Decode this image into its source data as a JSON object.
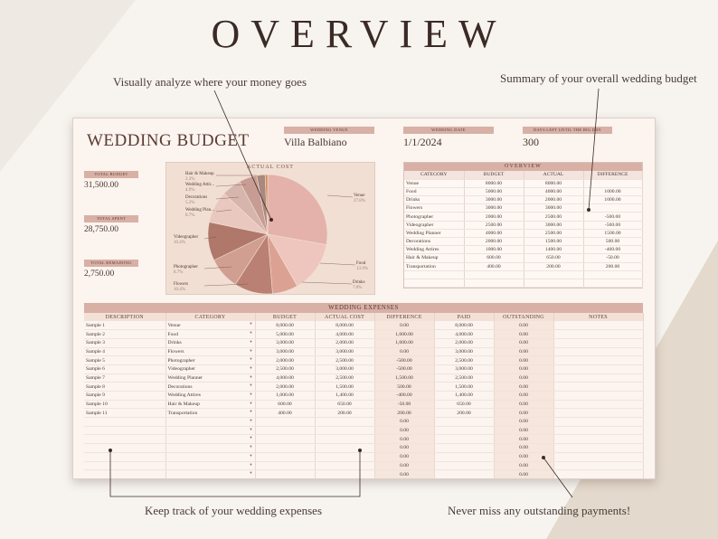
{
  "headline": "OVERVIEW",
  "callouts": {
    "analyze": "Visually analyze where your money goes",
    "summary": "Summary of your overall wedding budget",
    "track": "Keep track of your wedding expenses",
    "never_miss": "Never miss any outstanding payments!"
  },
  "sheet": {
    "title": "WEDDING BUDGET",
    "venue": {
      "label": "WEDDING VENUE",
      "value": "Villa Balbiano"
    },
    "date": {
      "label": "WEDDING DATE",
      "value": "1/1/2024"
    },
    "days_left": {
      "label": "DAYS LEFT UNTIL THE BIG DAY",
      "value": "300"
    },
    "total_budget": {
      "label": "TOTAL BUDGET",
      "value": "31,500.00"
    },
    "total_spent": {
      "label": "TOTAL SPENT",
      "value": "28,750.00"
    },
    "total_remaining": {
      "label": "TOTAL REMAINING",
      "value": "2,750.00"
    },
    "pie_title": "ACTUAL COST",
    "overview": {
      "title": "OVERVIEW",
      "headers": [
        "CATEGORY",
        "BUDGET",
        "ACTUAL",
        "DIFFERENCE"
      ],
      "rows": [
        [
          "Venue",
          "8000.00",
          "8000.00",
          ""
        ],
        [
          "Food",
          "5000.00",
          "4000.00",
          "1000.00"
        ],
        [
          "Drinks",
          "3000.00",
          "2000.00",
          "1000.00"
        ],
        [
          "Flowers",
          "3000.00",
          "3000.00",
          ""
        ],
        [
          "Photographer",
          "2000.00",
          "2500.00",
          "-500.00"
        ],
        [
          "Videographer",
          "2500.00",
          "3000.00",
          "-500.00"
        ],
        [
          "Wedding Planner",
          "4000.00",
          "2500.00",
          "1500.00"
        ],
        [
          "Decorations",
          "2000.00",
          "1500.00",
          "500.00"
        ],
        [
          "Wedding Attires",
          "1000.00",
          "1400.00",
          "-400.00"
        ],
        [
          "Hair & Makeup",
          "600.00",
          "650.00",
          "-50.00"
        ],
        [
          "Transportation",
          "400.00",
          "200.00",
          "200.00"
        ],
        [
          "",
          "",
          "",
          ""
        ],
        [
          "",
          "",
          "",
          ""
        ]
      ]
    },
    "expenses": {
      "title": "WEDDING EXPENSES",
      "headers": [
        "DESCRIPTION",
        "CATEGORY",
        "BUDGET",
        "ACTUAL COST",
        "DIFFERENCE",
        "PAID",
        "OUTSTANDING",
        "NOTES"
      ],
      "rows": [
        [
          "Sample 1",
          "Venue",
          "8,000.00",
          "8,000.00",
          "0.00",
          "8,000.00",
          "0.00",
          ""
        ],
        [
          "Sample 2",
          "Food",
          "5,000.00",
          "4,000.00",
          "1,000.00",
          "4,000.00",
          "0.00",
          ""
        ],
        [
          "Sample 3",
          "Drinks",
          "3,000.00",
          "2,000.00",
          "1,000.00",
          "2,000.00",
          "0.00",
          ""
        ],
        [
          "Sample 4",
          "Flowers",
          "3,000.00",
          "3,000.00",
          "0.00",
          "3,000.00",
          "0.00",
          ""
        ],
        [
          "Sample 5",
          "Photographer",
          "2,000.00",
          "2,500.00",
          "-500.00",
          "2,500.00",
          "0.00",
          ""
        ],
        [
          "Sample 6",
          "Videographer",
          "2,500.00",
          "3,000.00",
          "-500.00",
          "3,000.00",
          "0.00",
          ""
        ],
        [
          "Sample 7",
          "Wedding Planner",
          "4,000.00",
          "2,500.00",
          "1,500.00",
          "2,500.00",
          "0.00",
          ""
        ],
        [
          "Sample 8",
          "Decorations",
          "2,000.00",
          "1,500.00",
          "500.00",
          "1,500.00",
          "0.00",
          ""
        ],
        [
          "Sample 9",
          "Wedding Attires",
          "1,000.00",
          "1,400.00",
          "-400.00",
          "1,400.00",
          "0.00",
          ""
        ],
        [
          "Sample 10",
          "Hair & Makeup",
          "600.00",
          "650.00",
          "-50.00",
          "650.00",
          "0.00",
          ""
        ],
        [
          "Sample 11",
          "Transportation",
          "400.00",
          "200.00",
          "200.00",
          "200.00",
          "0.00",
          ""
        ],
        [
          "",
          "",
          "",
          "",
          "0.00",
          "",
          "0.00",
          ""
        ],
        [
          "",
          "",
          "",
          "",
          "0.00",
          "",
          "0.00",
          ""
        ],
        [
          "",
          "",
          "",
          "",
          "0.00",
          "",
          "0.00",
          ""
        ],
        [
          "",
          "",
          "",
          "",
          "0.00",
          "",
          "0.00",
          ""
        ],
        [
          "",
          "",
          "",
          "",
          "0.00",
          "",
          "0.00",
          ""
        ],
        [
          "",
          "",
          "",
          "",
          "0.00",
          "",
          "0.00",
          ""
        ],
        [
          "",
          "",
          "",
          "",
          "0.00",
          "",
          "0.00",
          ""
        ]
      ]
    }
  },
  "chart_data": {
    "type": "pie",
    "title": "ACTUAL COST",
    "slices": [
      {
        "label": "Venue",
        "pct": "27.8%",
        "value": 8000,
        "color": "#e4b2aa"
      },
      {
        "label": "Food",
        "pct": "13.9%",
        "value": 4000,
        "color": "#eec6bd"
      },
      {
        "label": "Drinks",
        "pct": "7.0%",
        "value": 2000,
        "color": "#dba293"
      },
      {
        "label": "Flowers",
        "pct": "10.4%",
        "value": 3000,
        "color": "#b98073"
      },
      {
        "label": "Photographer",
        "pct": "8.7%",
        "value": 2500,
        "color": "#d19e92"
      },
      {
        "label": "Videographer",
        "pct": "10.4%",
        "value": 3000,
        "color": "#b0776b"
      },
      {
        "label": "Wedding Plan...",
        "pct": "8.7%",
        "value": 2500,
        "color": "#e9c8c0"
      },
      {
        "label": "Decorations",
        "pct": "5.2%",
        "value": 1500,
        "color": "#d6b5ad"
      },
      {
        "label": "Wedding Attir...",
        "pct": "4.9%",
        "value": 1400,
        "color": "#c79c93"
      },
      {
        "label": "Hair & Makeup",
        "pct": "2.3%",
        "value": 650,
        "color": "#a8887f"
      },
      {
        "label": "",
        "pct": "",
        "value": 200,
        "color": "#d58d5f"
      }
    ]
  }
}
